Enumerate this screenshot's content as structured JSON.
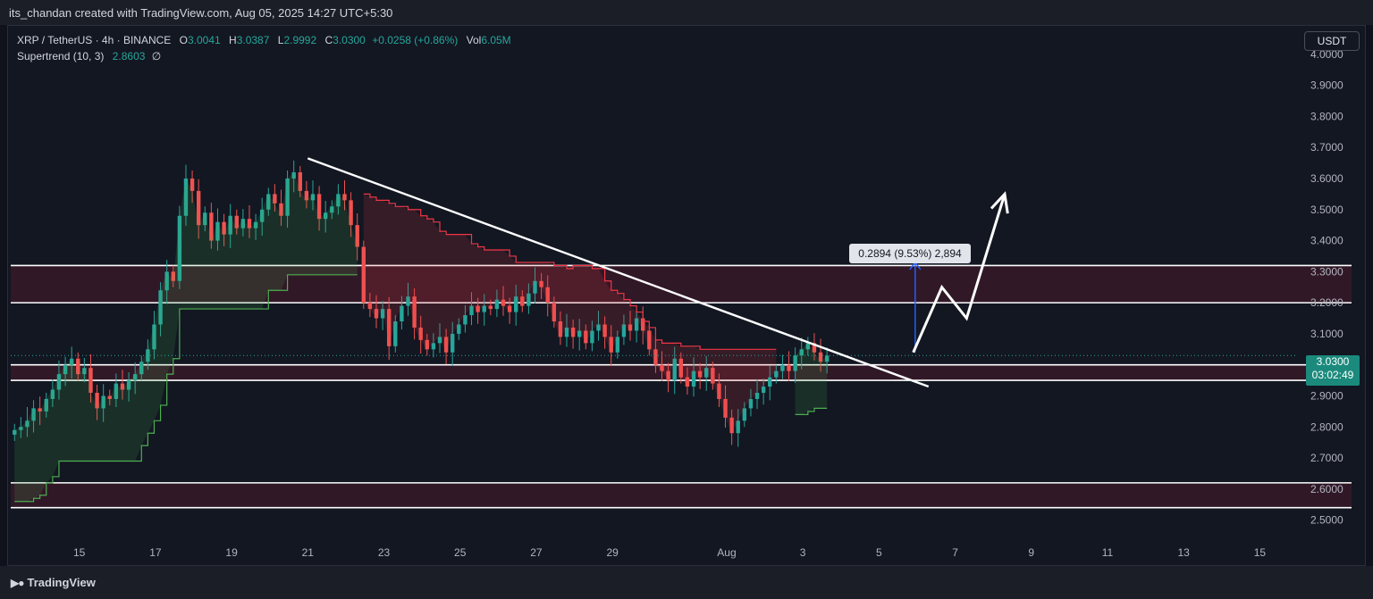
{
  "header": {
    "creator_line": "its_chandan created with TradingView.com, Aug 05, 2025 14:27 UTC+5:30"
  },
  "legend": {
    "symbol": "XRP / TetherUS · 4h · BINANCE",
    "open_label": "O",
    "open": "3.0041",
    "high_label": "H",
    "high": "3.0387",
    "low_label": "L",
    "low": "2.9992",
    "close_label": "C",
    "close": "3.0300",
    "change": "+0.0258 (+0.86%)",
    "vol_label": "Vol",
    "vol": "6.05M",
    "indicator": "Supertrend (10, 3)",
    "indicator_value": "2.8603",
    "indicator_icon": "∅"
  },
  "currency": "USDT",
  "price_badge": {
    "price": "3.0300",
    "countdown": "03:02:49"
  },
  "measure_label": "0.2894 (9.53%) 2,894",
  "footer": {
    "brand": "TradingView",
    "brand_icon": "tradingview-logo"
  },
  "colors": {
    "up": "#26a69a",
    "down": "#ef5350",
    "supertrend_up": "#4caf50",
    "supertrend_down": "#f23645",
    "zone_fill": "#4a1a2c",
    "line": "#ffffff",
    "measure": "#2962ff"
  },
  "chart_data": {
    "type": "candlestick",
    "symbol": "XRP / TetherUS",
    "interval": "4h",
    "ylim": [
      2.45,
      4.06
    ],
    "y_ticks": [
      "4.0000",
      "3.9000",
      "3.8000",
      "3.7000",
      "3.6000",
      "3.5000",
      "3.4000",
      "3.3000",
      "3.2000",
      "3.1000",
      "3.0000",
      "2.9000",
      "2.8000",
      "2.7000",
      "2.6000",
      "2.5000"
    ],
    "x_ticks": [
      "15",
      "17",
      "19",
      "21",
      "23",
      "25",
      "27",
      "29",
      "Aug",
      "3",
      "5",
      "7",
      "9",
      "11",
      "13",
      "15"
    ],
    "x_tick_days": [
      15,
      17,
      19,
      21,
      23,
      25,
      27,
      29,
      32,
      34,
      36,
      38,
      40,
      42,
      44,
      46
    ],
    "x_range_days": [
      13.2,
      47.0
    ],
    "closes": [
      2.79,
      2.8,
      2.82,
      2.86,
      2.85,
      2.89,
      2.92,
      2.97,
      3.0,
      3.02,
      2.97,
      2.99,
      2.91,
      2.86,
      2.9,
      2.89,
      2.94,
      2.92,
      2.95,
      2.97,
      3.01,
      3.05,
      3.13,
      3.24,
      3.3,
      3.27,
      3.48,
      3.6,
      3.56,
      3.45,
      3.49,
      3.4,
      3.46,
      3.42,
      3.48,
      3.44,
      3.47,
      3.44,
      3.46,
      3.5,
      3.55,
      3.52,
      3.48,
      3.6,
      3.62,
      3.56,
      3.53,
      3.55,
      3.47,
      3.49,
      3.51,
      3.55,
      3.53,
      3.45,
      3.38,
      3.2,
      3.18,
      3.15,
      3.18,
      3.06,
      3.14,
      3.19,
      3.22,
      3.12,
      3.08,
      3.05,
      3.07,
      3.09,
      3.04,
      3.1,
      3.13,
      3.16,
      3.19,
      3.17,
      3.19,
      3.18,
      3.21,
      3.19,
      3.17,
      3.22,
      3.19,
      3.23,
      3.27,
      3.25,
      3.2,
      3.14,
      3.09,
      3.12,
      3.09,
      3.11,
      3.07,
      3.11,
      3.13,
      3.09,
      3.04,
      3.09,
      3.13,
      3.11,
      3.15,
      3.11,
      3.05,
      3.0,
      2.98,
      2.95,
      3.02,
      2.96,
      2.93,
      2.98,
      2.96,
      2.99,
      2.94,
      2.89,
      2.83,
      2.78,
      2.82,
      2.86,
      2.89,
      2.91,
      2.93,
      2.96,
      2.98,
      3.0,
      2.98,
      3.03,
      3.05,
      3.07,
      3.04,
      3.01,
      3.03
    ],
    "supertrend_up_1": [
      2.56,
      2.56,
      2.56,
      2.57,
      2.58,
      2.62,
      2.64,
      2.69,
      2.69,
      2.69,
      2.69,
      2.69,
      2.69,
      2.69,
      2.69,
      2.69,
      2.69,
      2.69,
      2.69,
      2.69,
      2.74,
      2.78,
      2.82,
      2.87,
      2.97,
      3.02,
      3.18,
      3.18,
      3.18,
      3.18,
      3.18,
      3.18,
      3.18,
      3.18,
      3.18,
      3.18,
      3.18,
      3.18,
      3.18,
      3.18,
      3.24,
      3.24,
      3.24,
      3.29,
      3.29,
      3.29,
      3.29,
      3.29,
      3.29,
      3.29,
      3.29,
      3.29,
      3.29,
      3.29,
      3.29
    ],
    "supertrend_down_1": [
      3.55,
      3.54,
      3.53,
      3.53,
      3.52,
      3.51,
      3.51,
      3.5,
      3.5,
      3.48,
      3.47,
      3.46,
      3.43,
      3.42,
      3.42,
      3.42,
      3.42,
      3.39,
      3.38,
      3.37,
      3.37,
      3.37,
      3.37,
      3.35,
      3.33,
      3.33,
      3.33,
      3.33,
      3.33,
      3.33,
      3.32,
      3.32,
      3.31,
      3.32,
      3.32,
      3.32,
      3.31,
      3.31,
      3.27,
      3.24,
      3.23,
      3.21,
      3.19,
      3.17,
      3.14,
      3.12,
      3.08,
      3.07,
      3.07,
      3.07,
      3.06,
      3.06,
      3.06,
      3.05,
      3.05,
      3.05,
      3.05,
      3.05,
      3.05,
      3.05,
      3.05,
      3.05,
      3.05,
      3.05,
      3.05,
      3.05
    ],
    "supertrend_up_2": [
      2.84,
      2.84,
      2.85,
      2.86,
      2.86,
      2.86
    ],
    "zones": [
      [
        3.2,
        3.32
      ],
      [
        2.95,
        3.0
      ],
      [
        2.54,
        2.62
      ]
    ],
    "trendline": {
      "from": [
        21.0,
        3.665
      ],
      "to": [
        37.3,
        2.93
      ]
    },
    "measure": {
      "day": 36.95,
      "from": 3.04,
      "to": 3.33,
      "label": "0.2894 (9.53%) 2,894"
    },
    "projection": [
      [
        36.9,
        3.04
      ],
      [
        37.65,
        3.25
      ],
      [
        38.3,
        3.15
      ],
      [
        39.3,
        3.55
      ]
    ],
    "last_price": 3.03
  }
}
